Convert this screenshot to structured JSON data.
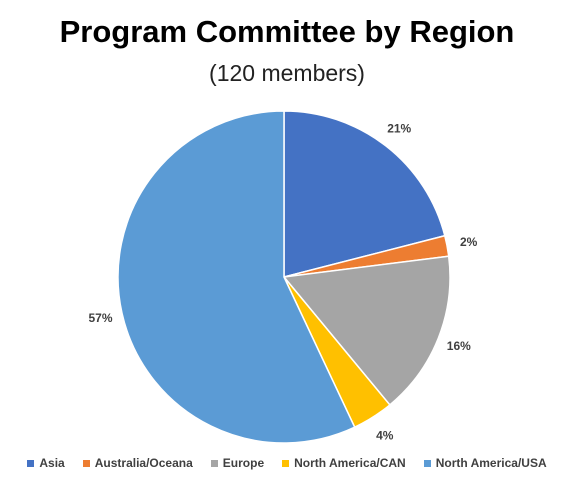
{
  "chart_data": {
    "type": "pie",
    "title": "Program Committee by Region",
    "subtitle": "(120 members)",
    "categories": [
      "Asia",
      "Australia/Oceana",
      "Europe",
      "North America/CAN",
      "North America/USA"
    ],
    "values": [
      21,
      2,
      16,
      4,
      57
    ],
    "value_labels": [
      "21%",
      "2%",
      "16%",
      "4%",
      "57%"
    ],
    "colors": [
      "#4472C4",
      "#ED7D31",
      "#A5A5A5",
      "#FFC000",
      "#5B9BD5"
    ],
    "legend_position": "bottom"
  }
}
